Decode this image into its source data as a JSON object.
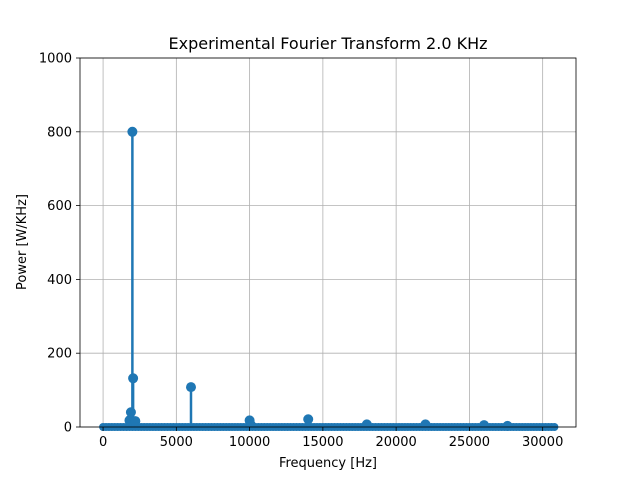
{
  "chart_data": {
    "type": "stem",
    "title": "Experimental Fourier Transform 2.0 KHz",
    "xlabel": "Frequency [Hz]",
    "ylabel": "Power [W/KHz]",
    "xlim": [
      -1575,
      32275
    ],
    "ylim": [
      0,
      1000
    ],
    "xticks": [
      0,
      5000,
      10000,
      15000,
      20000,
      25000,
      30000
    ],
    "yticks": [
      0,
      200,
      400,
      600,
      800,
      1000
    ],
    "grid": true,
    "color": "#1f77b4",
    "baseline_range": [
      0,
      30800
    ],
    "baseline_step": 200,
    "peaks": [
      {
        "x": 1800,
        "y": 18
      },
      {
        "x": 1900,
        "y": 40
      },
      {
        "x": 2000,
        "y": 800
      },
      {
        "x": 2050,
        "y": 132
      },
      {
        "x": 2200,
        "y": 16
      },
      {
        "x": 6000,
        "y": 108
      },
      {
        "x": 10000,
        "y": 18
      },
      {
        "x": 10100,
        "y": 5
      },
      {
        "x": 14000,
        "y": 21
      },
      {
        "x": 18000,
        "y": 7
      },
      {
        "x": 22000,
        "y": 7
      },
      {
        "x": 26000,
        "y": 5
      },
      {
        "x": 27600,
        "y": 3
      }
    ]
  }
}
